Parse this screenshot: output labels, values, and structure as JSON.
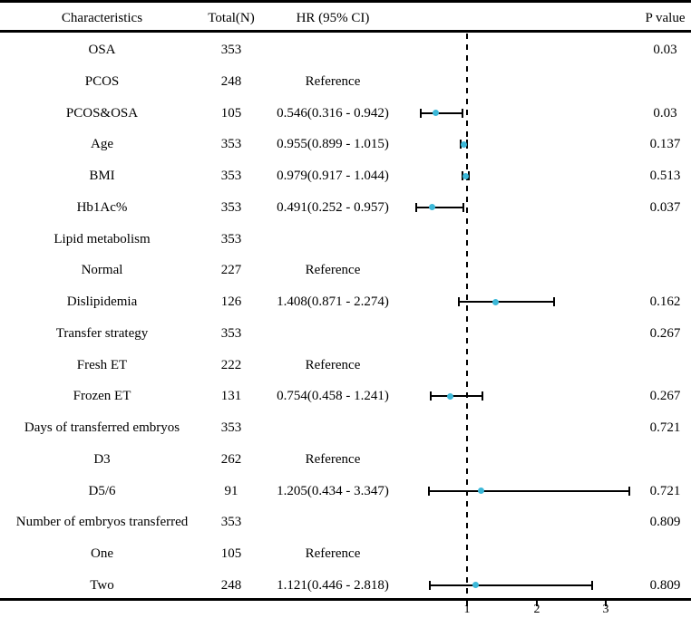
{
  "chart_data": {
    "type": "scatter",
    "variant": "forest-plot",
    "title": "",
    "columns": [
      "Characteristics",
      "Total(N)",
      "HR (95% CI)",
      "P value"
    ],
    "rows": [
      {
        "label": "OSA",
        "total": "353",
        "hr": "",
        "p": "0.03",
        "est": null,
        "lo": null,
        "hi": null
      },
      {
        "label": "PCOS",
        "total": "248",
        "hr": "Reference",
        "p": "",
        "est": null,
        "lo": null,
        "hi": null
      },
      {
        "label": "PCOS&OSA",
        "total": "105",
        "hr": "0.546(0.316 - 0.942)",
        "p": "0.03",
        "est": 0.546,
        "lo": 0.316,
        "hi": 0.942
      },
      {
        "label": "Age",
        "total": "353",
        "hr": "0.955(0.899 - 1.015)",
        "p": "0.137",
        "est": 0.955,
        "lo": 0.899,
        "hi": 1.015
      },
      {
        "label": "BMI",
        "total": "353",
        "hr": "0.979(0.917 - 1.044)",
        "p": "0.513",
        "est": 0.979,
        "lo": 0.917,
        "hi": 1.044
      },
      {
        "label": "Hb1Ac%",
        "total": "353",
        "hr": "0.491(0.252 - 0.957)",
        "p": "0.037",
        "est": 0.491,
        "lo": 0.252,
        "hi": 0.957
      },
      {
        "label": "Lipid metabolism",
        "total": "353",
        "hr": "",
        "p": "",
        "est": null,
        "lo": null,
        "hi": null
      },
      {
        "label": "Normal",
        "total": "227",
        "hr": "Reference",
        "p": "",
        "est": null,
        "lo": null,
        "hi": null
      },
      {
        "label": "Dislipidemia",
        "total": "126",
        "hr": "1.408(0.871 - 2.274)",
        "p": "0.162",
        "est": 1.408,
        "lo": 0.871,
        "hi": 2.274
      },
      {
        "label": "Transfer strategy",
        "total": "353",
        "hr": "",
        "p": "0.267",
        "est": null,
        "lo": null,
        "hi": null
      },
      {
        "label": "Fresh ET",
        "total": "222",
        "hr": "Reference",
        "p": "",
        "est": null,
        "lo": null,
        "hi": null
      },
      {
        "label": "Frozen ET",
        "total": "131",
        "hr": "0.754(0.458 - 1.241)",
        "p": "0.267",
        "est": 0.754,
        "lo": 0.458,
        "hi": 1.241
      },
      {
        "label": "Days of transferred embryos",
        "total": "353",
        "hr": "",
        "p": "0.721",
        "est": null,
        "lo": null,
        "hi": null
      },
      {
        "label": "D3",
        "total": "262",
        "hr": "Reference",
        "p": "",
        "est": null,
        "lo": null,
        "hi": null
      },
      {
        "label": "D5/6",
        "total": "91",
        "hr": "1.205(0.434 - 3.347)",
        "p": "0.721",
        "est": 1.205,
        "lo": 0.434,
        "hi": 3.347
      },
      {
        "label": "Number of embryos transferred",
        "total": "353",
        "hr": "",
        "p": "0.809",
        "est": null,
        "lo": null,
        "hi": null
      },
      {
        "label": "One",
        "total": "105",
        "hr": "Reference",
        "p": "",
        "est": null,
        "lo": null,
        "hi": null
      },
      {
        "label": "Two",
        "total": "248",
        "hr": "1.121(0.446 - 2.818)",
        "p": "0.809",
        "est": 1.121,
        "lo": 0.446,
        "hi": 2.818
      }
    ],
    "x_axis": {
      "ticks": [
        "1",
        "2",
        "3"
      ],
      "tick_values": [
        1,
        2,
        3
      ],
      "reference_line_value": 1,
      "scale": "linear",
      "grid": false
    },
    "legend": null,
    "colors": {
      "marker": "#3cb8d8",
      "line": "#000000"
    }
  }
}
